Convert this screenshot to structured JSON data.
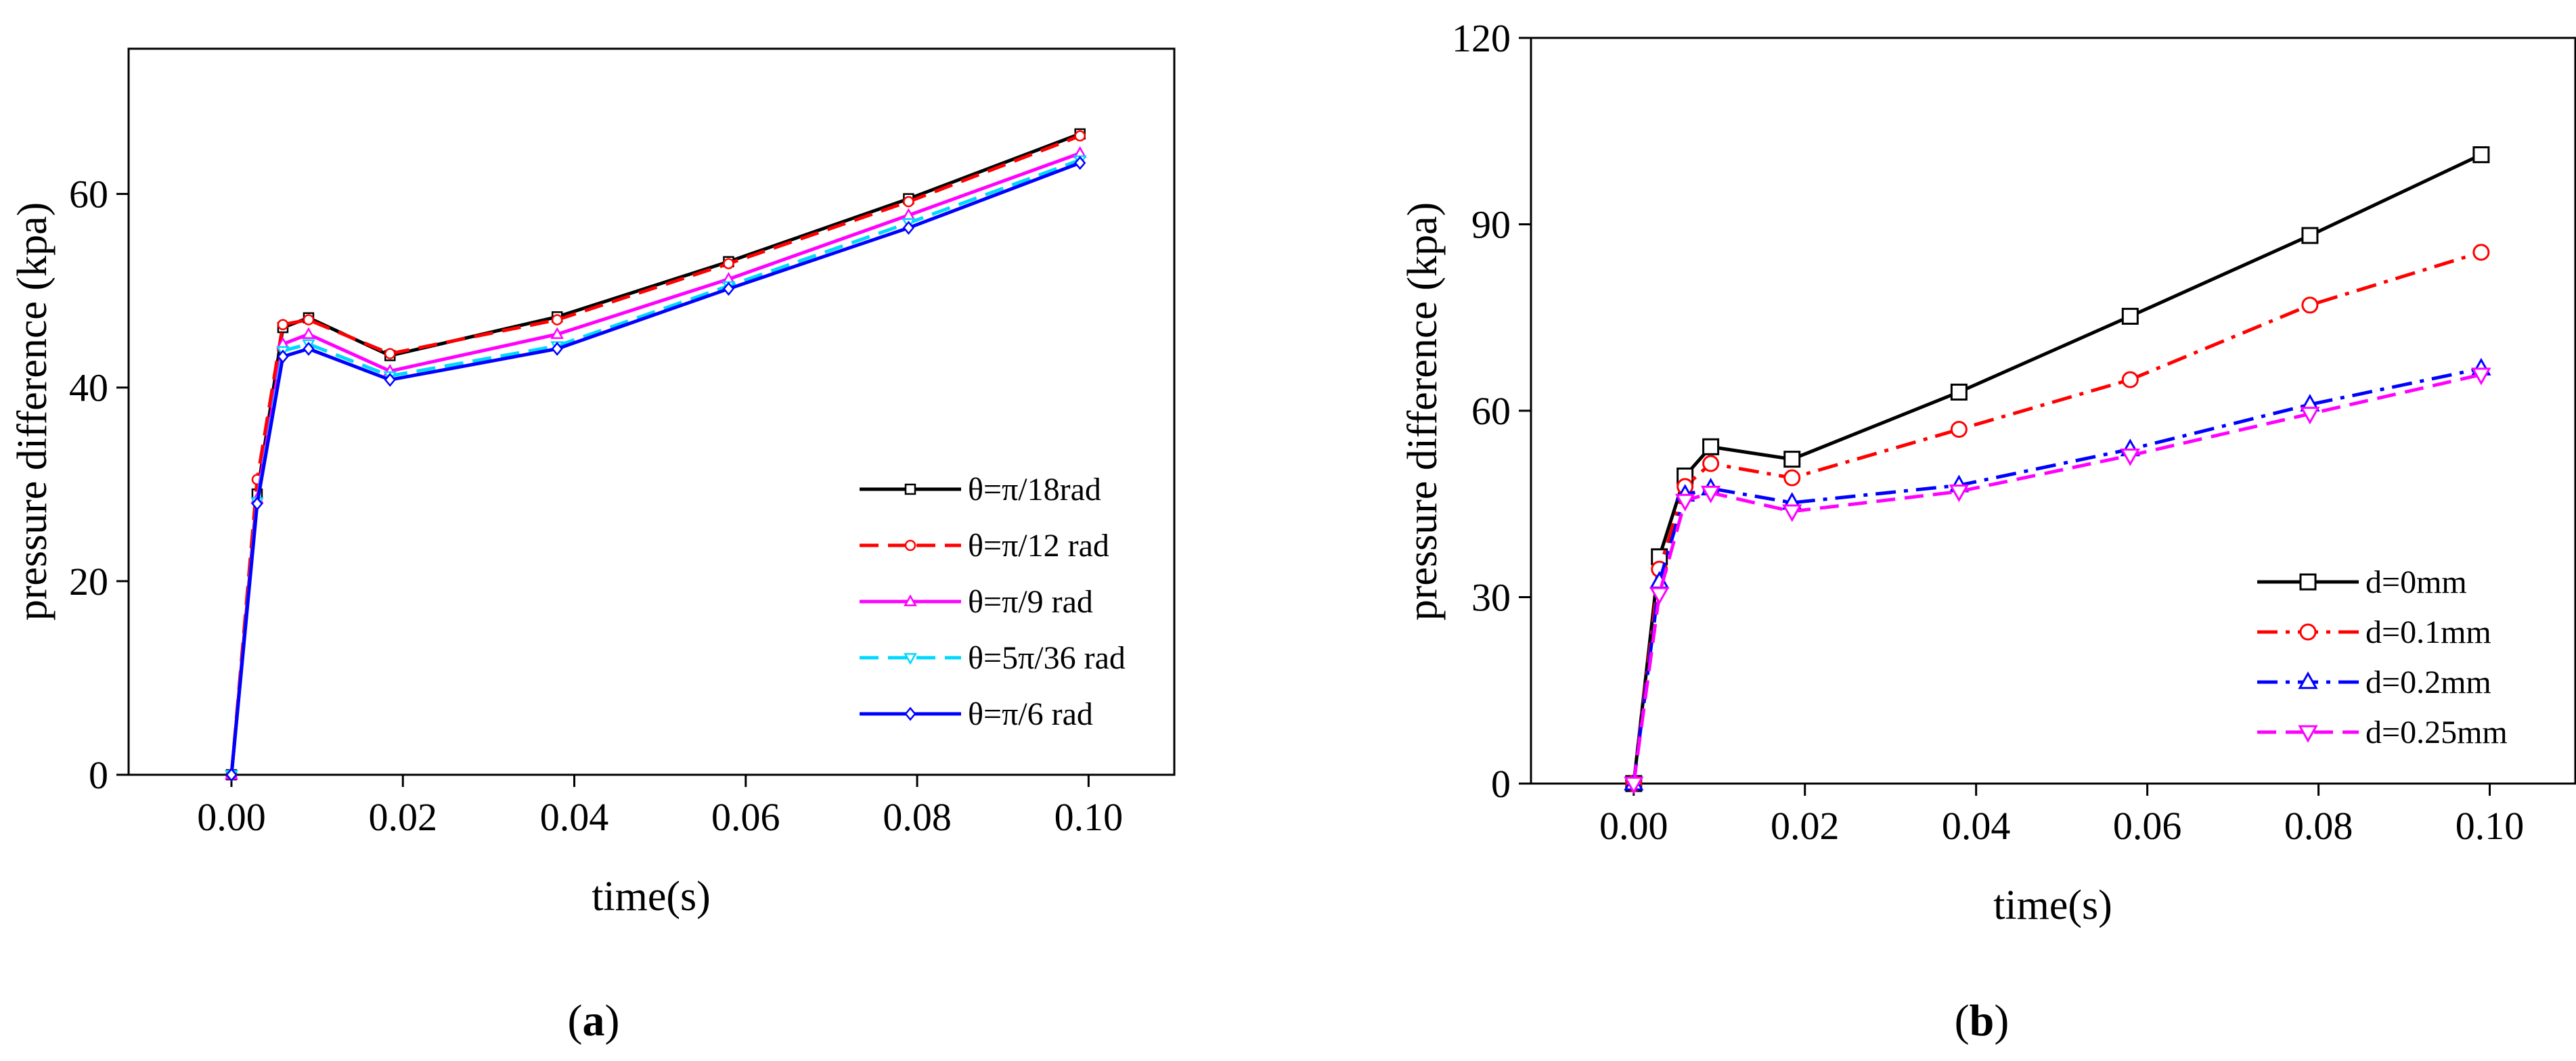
{
  "chart_data": [
    {
      "type": "line",
      "panel_label": {
        "open": "(",
        "letter": "a",
        "close": ")"
      },
      "xlabel": "time(s)",
      "ylabel": "pressure difference (kpa)",
      "xlim": [
        -0.012,
        0.11
      ],
      "ylim": [
        0,
        75
      ],
      "xticks": [
        0.0,
        0.02,
        0.04,
        0.06,
        0.08,
        0.1
      ],
      "xtick_labels": [
        "0.00",
        "0.02",
        "0.04",
        "0.06",
        "0.08",
        "0.10"
      ],
      "yticks": [
        0,
        20,
        40,
        60
      ],
      "ytick_labels": [
        "0",
        "20",
        "40",
        "60"
      ],
      "legend_position": "bottom-right",
      "x": [
        0.0,
        0.003,
        0.006,
        0.009,
        0.0185,
        0.038,
        0.058,
        0.079,
        0.099
      ],
      "series": [
        {
          "name": "θ=π/18rad",
          "color": "#000000",
          "dash": "",
          "marker": "square",
          "values": [
            0,
            29,
            46.2,
            47.2,
            43.3,
            47.3,
            53.0,
            59.5,
            66.2
          ]
        },
        {
          "name": "θ=π/12 rad",
          "color": "#ff0000",
          "dash": "28,14",
          "marker": "circle",
          "values": [
            0,
            30.5,
            46.5,
            47.0,
            43.5,
            47.0,
            52.8,
            59.2,
            66.0
          ]
        },
        {
          "name": "θ=π/9 rad",
          "color": "#ff00ff",
          "dash": "",
          "marker": "triangle-up",
          "values": [
            0,
            28.5,
            44.5,
            45.5,
            41.7,
            45.5,
            51.2,
            57.8,
            64.2
          ]
        },
        {
          "name": "θ=5π/36 rad",
          "color": "#00d8ff",
          "dash": "28,14",
          "marker": "triangle-down",
          "values": [
            0,
            28.2,
            43.8,
            44.5,
            41.2,
            44.3,
            50.5,
            57.0,
            63.5
          ]
        },
        {
          "name": "θ=π/6 rad",
          "color": "#0000ff",
          "dash": "",
          "marker": "diamond",
          "values": [
            0,
            28,
            43.2,
            44.0,
            40.8,
            44.0,
            50.2,
            56.5,
            63.2
          ]
        }
      ]
    },
    {
      "type": "line",
      "panel_label": {
        "open": "(",
        "letter": "b",
        "close": ")"
      },
      "xlabel": "time(s)",
      "ylabel": "pressure difference (kpa)",
      "xlim": [
        -0.012,
        0.11
      ],
      "ylim": [
        0,
        120
      ],
      "xticks": [
        0.0,
        0.02,
        0.04,
        0.06,
        0.08,
        0.1
      ],
      "xtick_labels": [
        "0.00",
        "0.02",
        "0.04",
        "0.06",
        "0.08",
        "0.10"
      ],
      "yticks": [
        0,
        30,
        60,
        90,
        120
      ],
      "ytick_labels": [
        "0",
        "30",
        "60",
        "90",
        "120"
      ],
      "legend_position": "bottom-right",
      "x": [
        0.0,
        0.003,
        0.006,
        0.009,
        0.0185,
        0.038,
        0.058,
        0.079,
        0.099
      ],
      "series": [
        {
          "name": "d=0mm",
          "color": "#000000",
          "dash": "",
          "marker": "square",
          "values": [
            0,
            36.5,
            49.5,
            54.2,
            52.2,
            63.0,
            75.2,
            88.2,
            101.2
          ]
        },
        {
          "name": "d=0.1mm",
          "color": "#ff0000",
          "dash": "30,12,6,12",
          "marker": "circle",
          "values": [
            0,
            34.5,
            47.8,
            51.5,
            49.2,
            57.0,
            65.0,
            77.0,
            85.5
          ]
        },
        {
          "name": "d=0.2mm",
          "color": "#0000ff",
          "dash": "30,12,6,12",
          "marker": "triangle-up",
          "values": [
            0,
            32.5,
            46.5,
            47.5,
            45.2,
            48.0,
            53.8,
            61.0,
            66.8
          ]
        },
        {
          "name": "d=0.25mm",
          "color": "#ff00ff",
          "dash": "28,14",
          "marker": "triangle-down",
          "values": [
            0,
            30.5,
            45.5,
            46.8,
            43.8,
            47.0,
            52.8,
            59.5,
            65.8
          ]
        }
      ]
    }
  ]
}
